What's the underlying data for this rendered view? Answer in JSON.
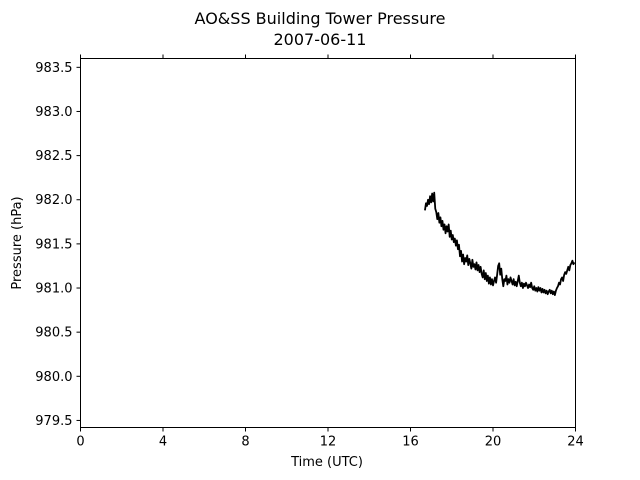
{
  "chart_data": {
    "type": "line",
    "title": "AO&SS Building Tower Pressure",
    "subtitle": "2007-06-11",
    "xlabel": "Time (UTC)",
    "ylabel": "Pressure (hPa)",
    "xlim": [
      0,
      24
    ],
    "ylim": [
      979.42,
      983.6
    ],
    "xticks": [
      0,
      4,
      8,
      12,
      16,
      20,
      24
    ],
    "yticks": [
      979.5,
      980.0,
      980.5,
      981.0,
      981.5,
      982.0,
      982.5,
      983.0,
      983.5
    ],
    "grid": false,
    "line_color": "#000000",
    "series": [
      {
        "x": [
          16.7,
          16.75,
          16.8,
          16.85,
          16.9,
          16.95,
          17.0,
          17.05,
          17.1,
          17.15,
          17.2,
          17.25,
          17.3,
          17.35,
          17.4,
          17.45,
          17.5,
          17.55,
          17.6,
          17.65,
          17.7,
          17.75,
          17.8,
          17.85,
          17.9,
          17.95,
          18.0,
          18.05,
          18.1,
          18.15,
          18.2,
          18.25,
          18.3,
          18.35,
          18.4,
          18.45,
          18.5,
          18.55,
          18.6,
          18.65,
          18.7,
          18.75,
          18.8,
          18.85,
          18.9,
          18.95,
          19.0,
          19.05,
          19.1,
          19.15,
          19.2,
          19.25,
          19.3,
          19.35,
          19.4,
          19.45,
          19.5,
          19.55,
          19.6,
          19.65,
          19.7,
          19.75,
          19.8,
          19.85,
          19.9,
          19.95,
          20.0,
          20.05,
          20.1,
          20.15,
          20.2,
          20.25,
          20.3,
          20.35,
          20.4,
          20.45,
          20.5,
          20.55,
          20.6,
          20.65,
          20.7,
          20.75,
          20.8,
          20.85,
          20.9,
          20.95,
          21.0,
          21.05,
          21.1,
          21.15,
          21.2,
          21.25,
          21.3,
          21.35,
          21.4,
          21.45,
          21.5,
          21.55,
          21.6,
          21.65,
          21.7,
          21.75,
          21.8,
          21.85,
          21.9,
          21.95,
          22.0,
          22.05,
          22.1,
          22.15,
          22.2,
          22.25,
          22.3,
          22.35,
          22.4,
          22.45,
          22.5,
          22.55,
          22.6,
          22.65,
          22.7,
          22.75,
          22.8,
          22.85,
          22.9,
          22.95,
          23.0,
          23.05,
          23.1,
          23.15,
          23.2,
          23.25,
          23.3,
          23.35,
          23.4,
          23.45,
          23.5,
          23.55,
          23.6,
          23.65,
          23.7,
          23.75,
          23.8,
          23.85,
          23.9,
          23.95
        ],
        "y": [
          981.88,
          981.96,
          981.93,
          982.0,
          981.95,
          982.04,
          981.97,
          982.07,
          981.98,
          982.08,
          981.9,
          981.86,
          981.78,
          981.85,
          981.74,
          981.8,
          981.7,
          981.76,
          981.66,
          981.72,
          981.62,
          981.7,
          981.64,
          981.72,
          981.58,
          981.65,
          981.55,
          981.6,
          981.52,
          981.56,
          981.48,
          981.54,
          981.44,
          981.49,
          981.36,
          981.42,
          981.3,
          981.38,
          981.27,
          981.34,
          981.3,
          981.37,
          981.26,
          981.33,
          981.28,
          981.22,
          981.32,
          981.24,
          981.27,
          981.21,
          981.29,
          981.2,
          981.26,
          981.18,
          981.24,
          981.16,
          981.12,
          981.2,
          981.1,
          981.17,
          981.08,
          981.14,
          981.05,
          981.12,
          981.04,
          981.1,
          981.03,
          981.08,
          981.12,
          981.06,
          981.15,
          981.25,
          981.28,
          981.15,
          981.22,
          981.1,
          981.02,
          981.1,
          981.08,
          981.14,
          981.04,
          981.1,
          981.06,
          981.12,
          981.08,
          981.04,
          981.1,
          981.03,
          981.07,
          981.02,
          981.08,
          981.14,
          981.06,
          981.02,
          981.06,
          981.0,
          981.05,
          981.02,
          981.06,
          981.03,
          981.0,
          981.04,
          981.01,
          981.06,
          981.0,
          980.98,
          981.02,
          980.97,
          981.0,
          980.96,
          981.01,
          980.97,
          981.0,
          980.95,
          980.99,
          980.95,
          980.98,
          980.94,
          980.97,
          980.93,
          980.96,
          980.98,
          980.94,
          980.97,
          980.93,
          980.96,
          980.92,
          980.97,
          981.0,
          981.02,
          981.06,
          981.04,
          981.1,
          981.12,
          981.08,
          981.15,
          981.18,
          981.16,
          981.2,
          981.24,
          981.2,
          981.26,
          981.28,
          981.31,
          981.27,
          981.29
        ]
      }
    ]
  }
}
